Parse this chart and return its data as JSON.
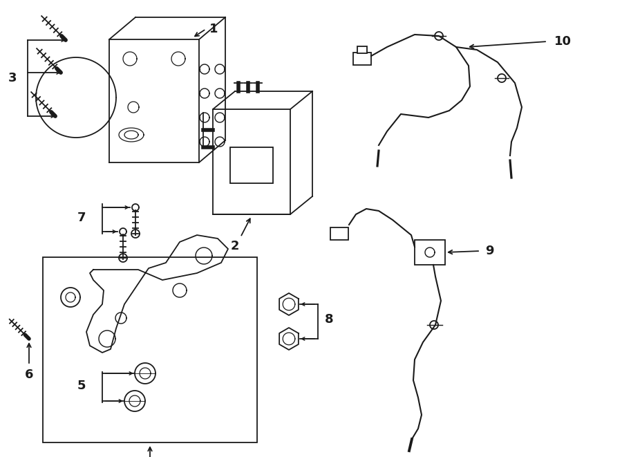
{
  "background_color": "#ffffff",
  "line_color": "#1a1a1a",
  "figsize": [
    9.0,
    6.61
  ],
  "dpi": 100,
  "xlim": [
    0,
    900
  ],
  "ylim": [
    0,
    661
  ]
}
